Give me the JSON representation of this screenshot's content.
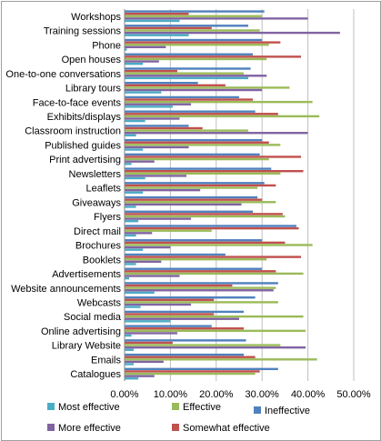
{
  "chart_data": {
    "type": "bar",
    "orientation": "horizontal",
    "categories": [
      "Catalogues",
      "Emails",
      "Library Website",
      "Online advertising",
      "Social media",
      "Webcasts",
      "Website announcements",
      "Advertisements",
      "Booklets",
      "Brochures",
      "Direct mail",
      "Flyers",
      "Giveaways",
      "Leaflets",
      "Newsletters",
      "Print advertising",
      "Published guides",
      "Classroom instruction",
      "Exhibits/displays",
      "Face-to-face events",
      "Library tours",
      "One-to-one conversations",
      "Open houses",
      "Phone",
      "Training sessions",
      "Workshops"
    ],
    "series": [
      {
        "name": "Most effective",
        "color": "#4bacc6",
        "values": [
          3.0,
          2.0,
          2.0,
          1.5,
          10.0,
          3.5,
          6.5,
          1.0,
          2.5,
          4.0,
          2.5,
          3.0,
          2.5,
          4.0,
          4.5,
          1.5,
          4.0,
          2.5,
          4.5,
          10.5,
          8.0,
          27.0,
          4.0,
          0.5,
          14.0,
          12.0
        ]
      },
      {
        "name": "Effective",
        "color": "#9bbb59",
        "values": [
          28.5,
          42.0,
          34.0,
          39.5,
          39.0,
          33.5,
          33.0,
          39.0,
          31.0,
          41.0,
          19.0,
          35.0,
          33.0,
          29.0,
          34.0,
          31.5,
          34.0,
          27.0,
          42.5,
          41.0,
          36.0,
          26.0,
          31.0,
          31.5,
          29.5,
          30.0
        ]
      },
      {
        "name": "Ineffective",
        "color": "#4f81bd",
        "values": [
          33.5,
          26.0,
          26.5,
          19.0,
          26.0,
          28.5,
          33.5,
          30.0,
          22.0,
          30.0,
          37.5,
          28.0,
          29.0,
          30.5,
          32.0,
          29.5,
          30.0,
          14.0,
          28.5,
          25.0,
          16.0,
          27.5,
          28.0,
          30.0,
          27.0,
          30.5
        ]
      },
      {
        "name": "More effective",
        "color": "#8064a2",
        "values": [
          6.5,
          8.5,
          39.5,
          11.5,
          25.0,
          14.5,
          32.5,
          12.0,
          8.0,
          10.0,
          6.0,
          14.5,
          25.5,
          16.5,
          13.5,
          6.5,
          14.0,
          40.0,
          12.0,
          14.5,
          30.0,
          31.0,
          7.5,
          9.0,
          47.0,
          40.0
        ]
      },
      {
        "name": "Somewhat effective",
        "color": "#c0504d",
        "values": [
          29.5,
          28.5,
          10.5,
          26.0,
          19.5,
          19.5,
          23.5,
          33.0,
          38.5,
          35.0,
          38.0,
          34.5,
          30.0,
          33.0,
          39.0,
          38.5,
          31.5,
          17.0,
          33.5,
          28.0,
          22.0,
          11.5,
          38.5,
          34.0,
          19.0,
          14.0
        ]
      }
    ],
    "series_order_in_group": [
      "Ineffective",
      "Somewhat effective",
      "Effective",
      "More effective",
      "Most effective"
    ],
    "x_ticks": [
      "0.00%",
      "10.00%",
      "20.00%",
      "30.00%",
      "40.00%",
      "50.00%"
    ],
    "xlim": [
      0,
      50
    ],
    "grid": true,
    "legend_position": "bottom",
    "legend": [
      "Most effective",
      "Effective",
      "Ineffective",
      "More effective",
      "Somewhat effective"
    ]
  }
}
